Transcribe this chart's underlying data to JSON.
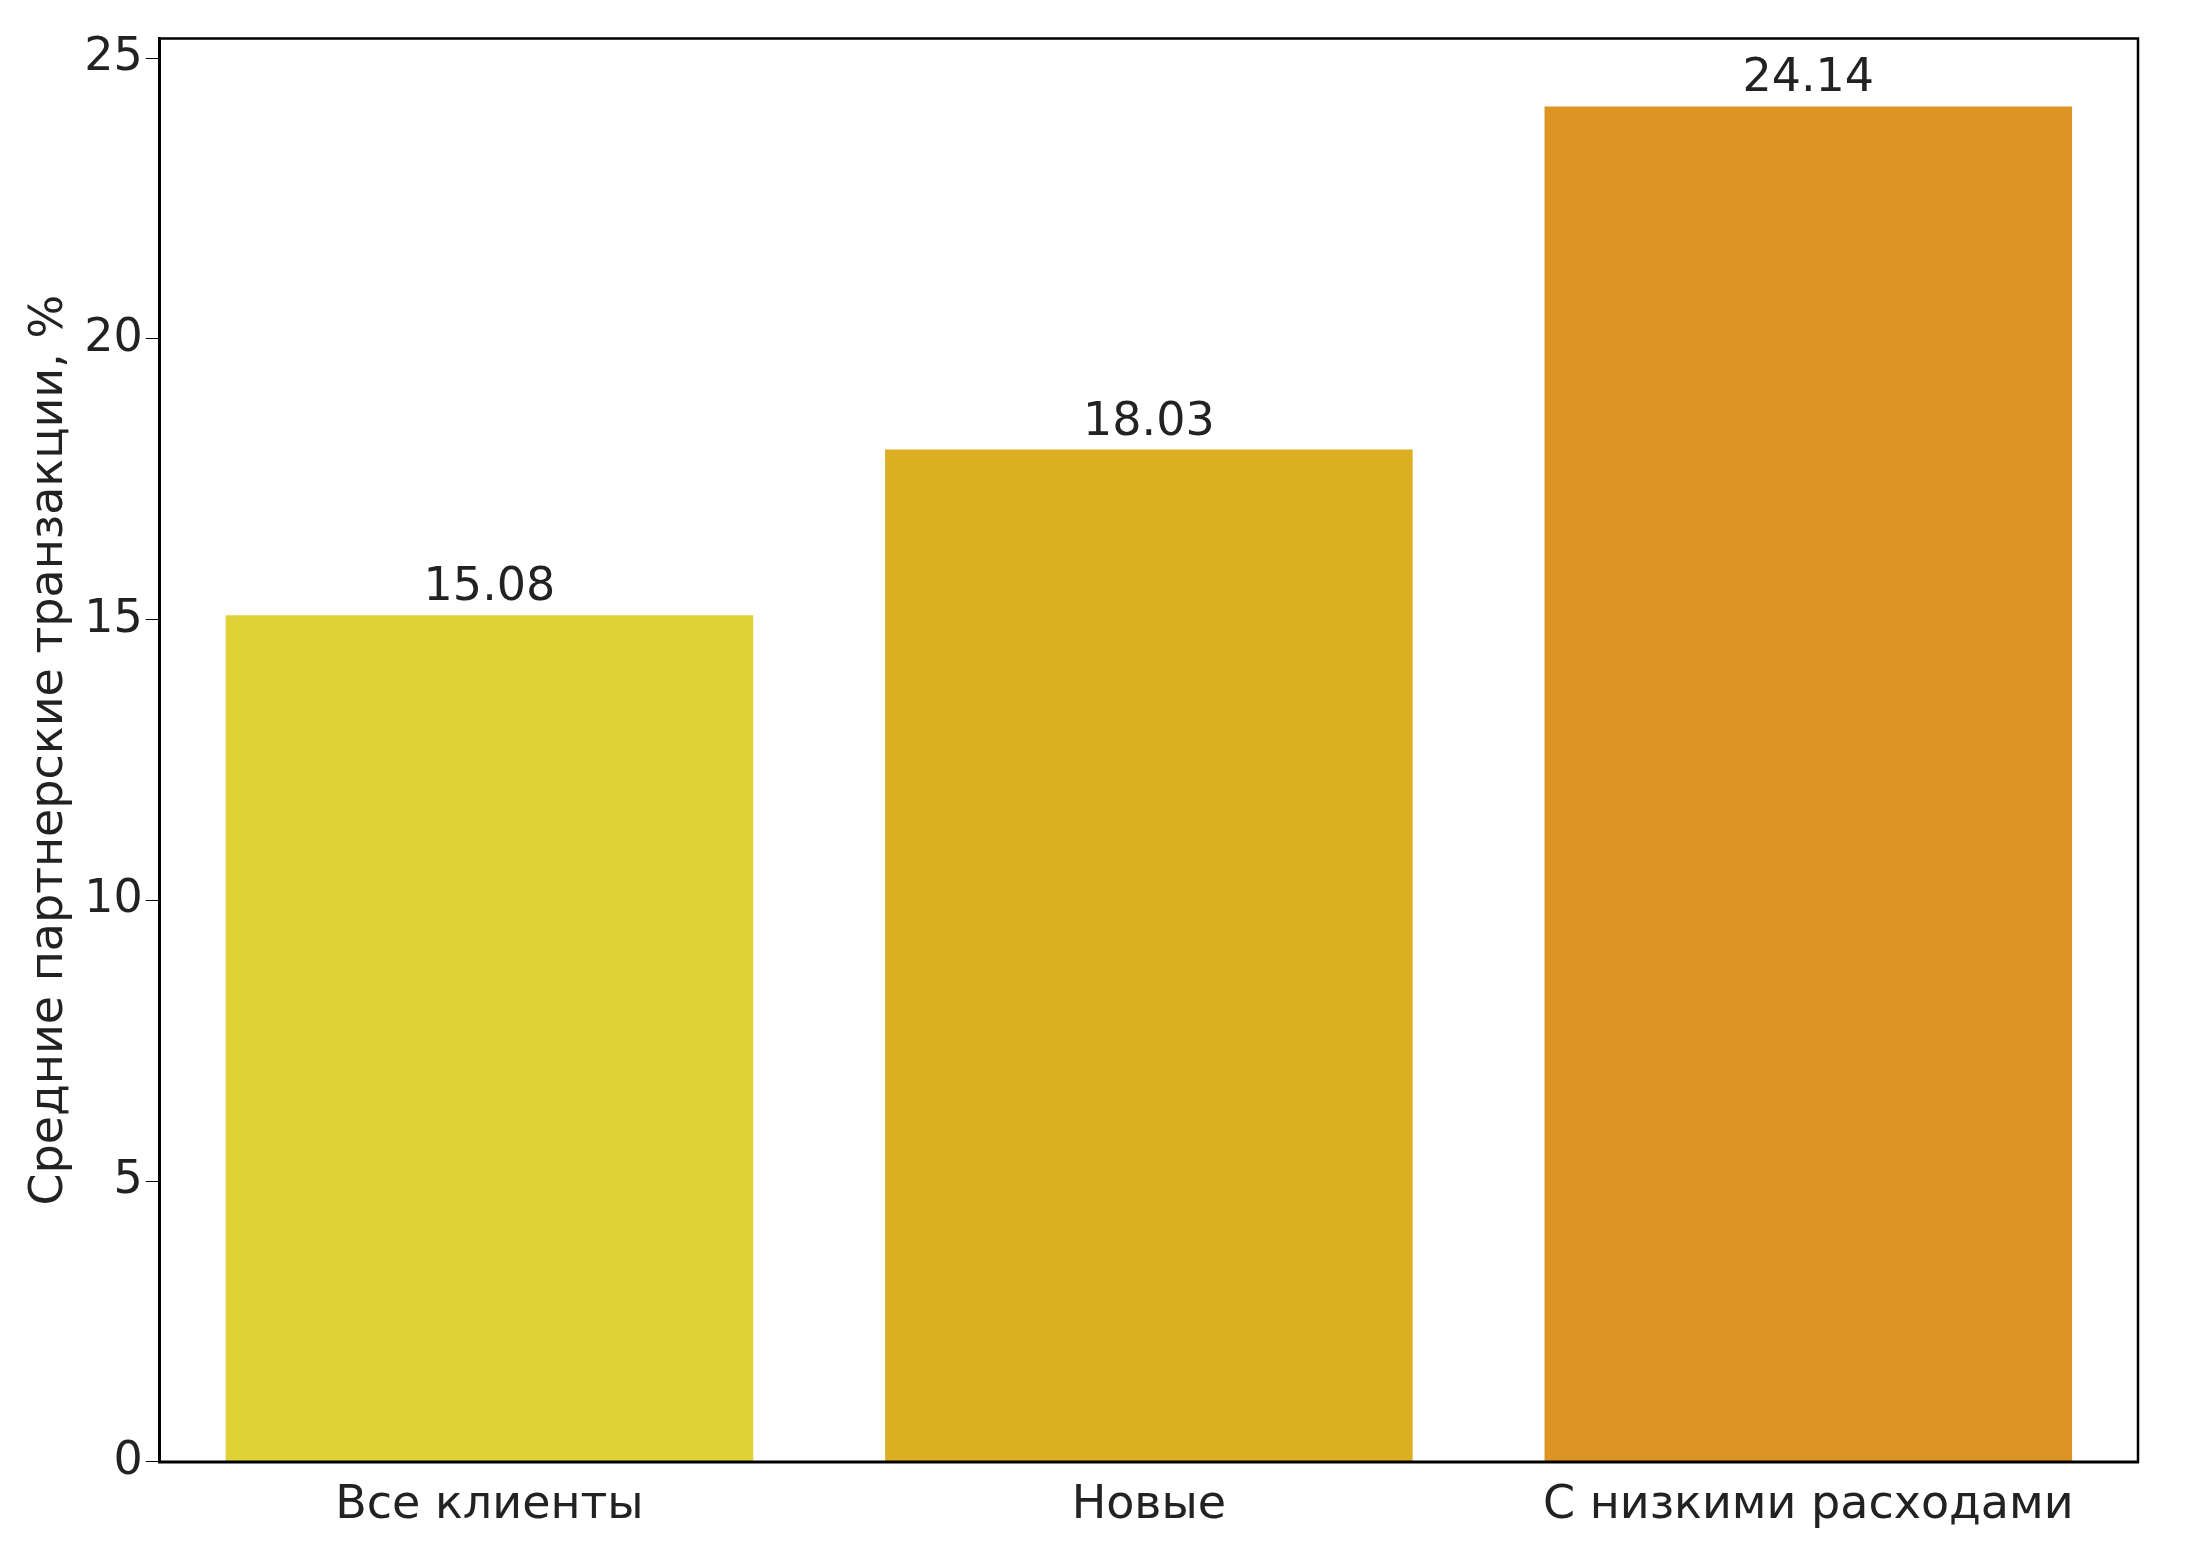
{
  "chart_data": {
    "type": "bar",
    "ylabel": "Средние партнерские транзакции, %",
    "categories": [
      "Все клиенты",
      "Новые",
      "С низкими расходами"
    ],
    "values": [
      15.08,
      18.03,
      24.14
    ],
    "colors": [
      "#e0d136",
      "#dcae21",
      "#dc9522"
    ],
    "ylim": [
      0,
      25.35
    ],
    "yticks": [
      0,
      5,
      10,
      15,
      20,
      25
    ],
    "grid": false,
    "legend": false,
    "data_labels": true
  }
}
